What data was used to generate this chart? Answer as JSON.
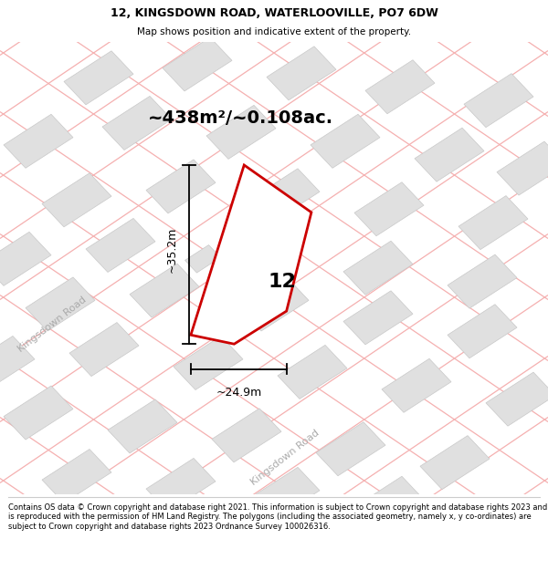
{
  "title_line1": "12, KINGSDOWN ROAD, WATERLOOVILLE, PO7 6DW",
  "title_line2": "Map shows position and indicative extent of the property.",
  "area_text": "~438m²/~0.108ac.",
  "label_12": "12",
  "dim_width": "~24.9m",
  "dim_height": "~35.2m",
  "road_label1": "Kingsdown Road",
  "road_label2": "Kingsdown Road",
  "footer": "Contains OS data © Crown copyright and database right 2021. This information is subject to Crown copyright and database rights 2023 and is reproduced with the permission of HM Land Registry. The polygons (including the associated geometry, namely x, y co-ordinates) are subject to Crown copyright and database rights 2023 Ordnance Survey 100026316.",
  "property_color": "#cc0000",
  "property_fill": "#ffffff",
  "road_color": "#f5b0b0",
  "building_fill": "#e0e0e0",
  "building_edge": "#c8c8c8",
  "map_bg": "#ffffff",
  "header_bg": "#ffffff",
  "footer_bg": "#ffffff"
}
